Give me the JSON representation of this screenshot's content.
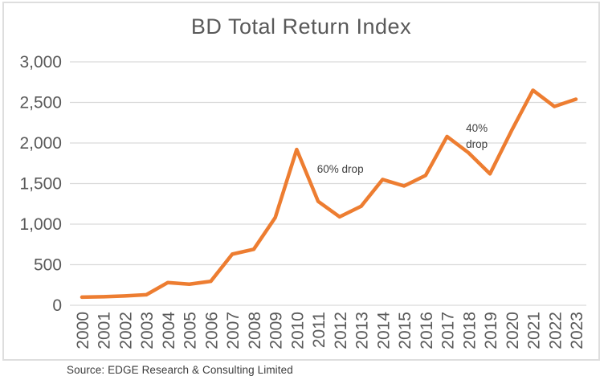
{
  "title": "BD Total Return Index",
  "source": "Source: EDGE Research & Consulting Limited",
  "colors": {
    "line": "#ED7D31",
    "grid": "#D9D9D9",
    "axis_text": "#595959",
    "title_text": "#595959",
    "annotation_text": "#3F3F3F",
    "border": "#DEDEDE",
    "source_text": "#3B3B3B"
  },
  "chart_data": {
    "type": "line",
    "title": "BD Total Return Index",
    "x": [
      "2000",
      "2001",
      "2002",
      "2003",
      "2004",
      "2005",
      "2006",
      "2007",
      "2008",
      "2009",
      "2010",
      "2011",
      "2012",
      "2013",
      "2014",
      "2015",
      "2016",
      "2017",
      "2018",
      "2019",
      "2020",
      "2021",
      "2022",
      "2023"
    ],
    "series": [
      {
        "name": "BD Total Return Index",
        "values": [
          100,
          105,
          115,
          130,
          280,
          260,
          295,
          630,
          690,
          1080,
          1920,
          1280,
          1090,
          1220,
          1550,
          1470,
          1600,
          2080,
          1880,
          1620,
          2150,
          2650,
          2450,
          2540
        ]
      }
    ],
    "xlabel": "",
    "ylabel": "",
    "ylim": [
      0,
      3000
    ],
    "ytick_step": 500,
    "ytick_labels": [
      "0",
      "500",
      "1,000",
      "1,500",
      "2,000",
      "2,500",
      "3,000"
    ],
    "grid": "horizontal",
    "legend": "none",
    "annotations": [
      {
        "lines": [
          "60% drop"
        ],
        "x_index": 10.95,
        "value": 1633
      },
      {
        "lines": [
          "40%",
          "drop"
        ],
        "x_index": 17.88,
        "value": 2139
      }
    ]
  }
}
